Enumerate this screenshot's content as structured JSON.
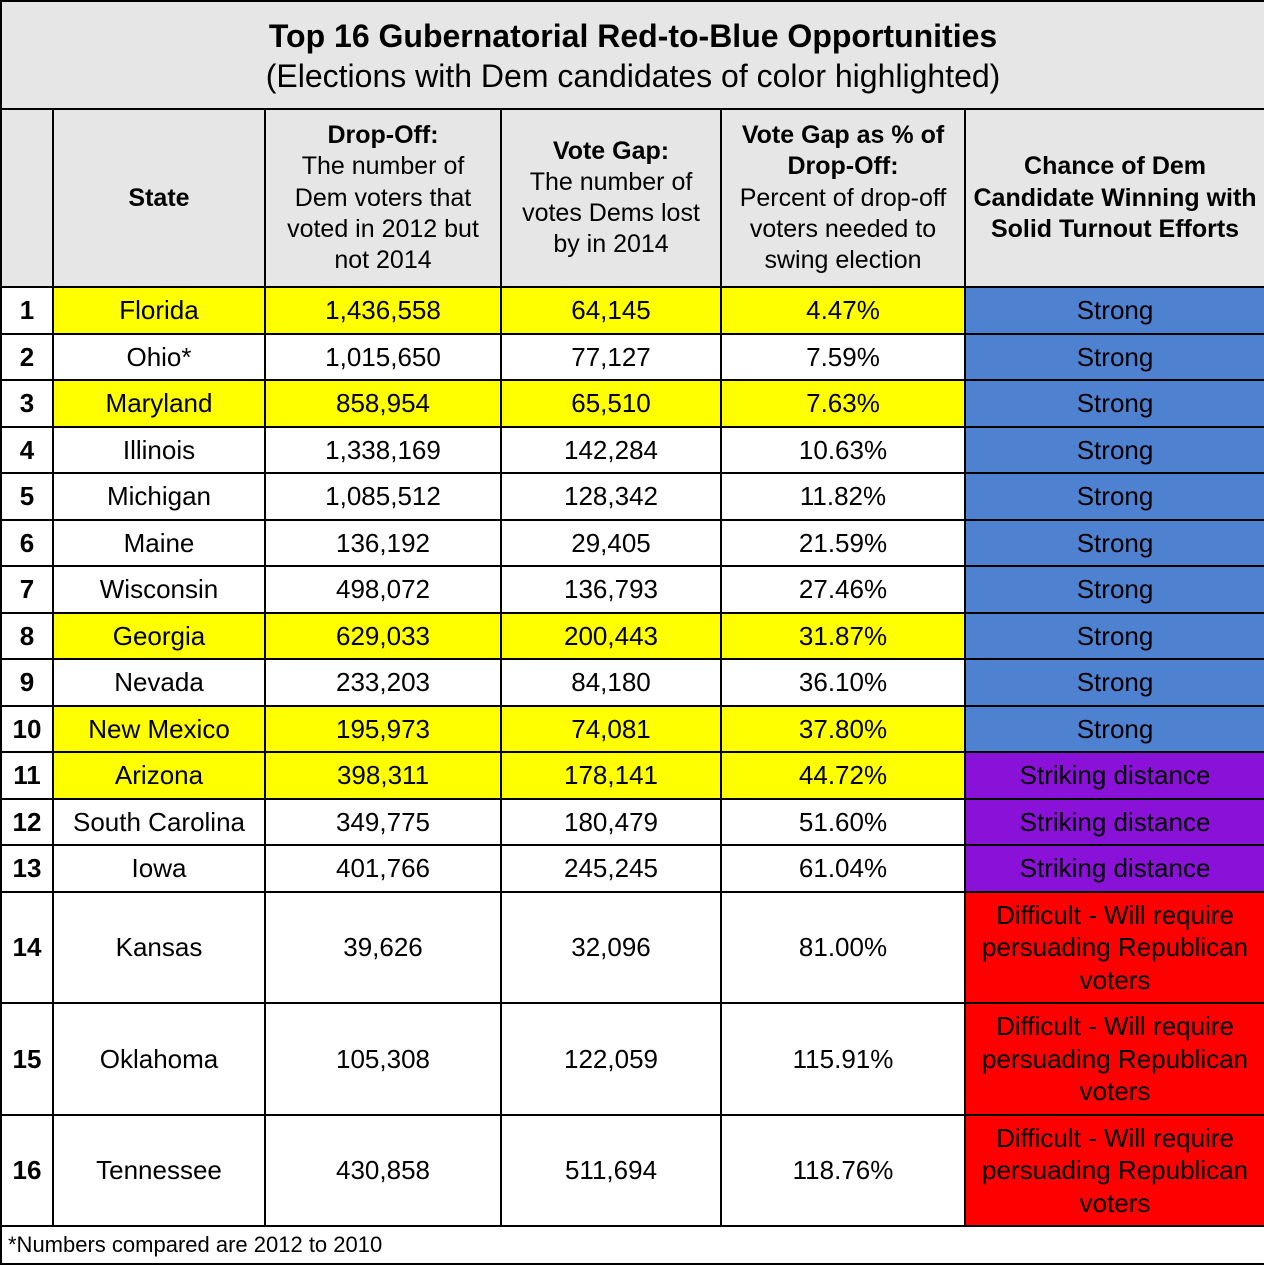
{
  "title": {
    "main": "Top 16 Gubernatorial Red-to-Blue Opportunities",
    "sub": "(Elections with Dem candidates of color highlighted)"
  },
  "columns": {
    "state": "State",
    "dropoff_bold": "Drop-Off:",
    "dropoff_rest": "The number of Dem voters that voted in 2012 but not 2014",
    "gap_bold": "Vote Gap:",
    "gap_rest": "The number of votes Dems lost by in 2014",
    "pct_bold": "Vote Gap as % of Drop-Off:",
    "pct_rest": "Percent of drop-off voters needed to swing election",
    "chance": "Chance of Dem Candidate Winning with Solid Turnout Efforts"
  },
  "chance_colors": {
    "strong": "#4f81d1",
    "striking": "#8a12d8",
    "difficult": "#ff0000"
  },
  "highlight_color": "#ffff00",
  "rows": [
    {
      "n": "1",
      "state": "Florida",
      "dropoff": "1,436,558",
      "gap": "64,145",
      "pct": "4.47%",
      "chance": "Strong",
      "chance_key": "strong",
      "hl": true
    },
    {
      "n": "2",
      "state": "Ohio*",
      "dropoff": "1,015,650",
      "gap": "77,127",
      "pct": "7.59%",
      "chance": "Strong",
      "chance_key": "strong",
      "hl": false
    },
    {
      "n": "3",
      "state": "Maryland",
      "dropoff": "858,954",
      "gap": "65,510",
      "pct": "7.63%",
      "chance": "Strong",
      "chance_key": "strong",
      "hl": true
    },
    {
      "n": "4",
      "state": "Illinois",
      "dropoff": "1,338,169",
      "gap": "142,284",
      "pct": "10.63%",
      "chance": "Strong",
      "chance_key": "strong",
      "hl": false
    },
    {
      "n": "5",
      "state": "Michigan",
      "dropoff": "1,085,512",
      "gap": "128,342",
      "pct": "11.82%",
      "chance": "Strong",
      "chance_key": "strong",
      "hl": false
    },
    {
      "n": "6",
      "state": "Maine",
      "dropoff": "136,192",
      "gap": "29,405",
      "pct": "21.59%",
      "chance": "Strong",
      "chance_key": "strong",
      "hl": false
    },
    {
      "n": "7",
      "state": "Wisconsin",
      "dropoff": "498,072",
      "gap": "136,793",
      "pct": "27.46%",
      "chance": "Strong",
      "chance_key": "strong",
      "hl": false
    },
    {
      "n": "8",
      "state": "Georgia",
      "dropoff": "629,033",
      "gap": "200,443",
      "pct": "31.87%",
      "chance": "Strong",
      "chance_key": "strong",
      "hl": true
    },
    {
      "n": "9",
      "state": "Nevada",
      "dropoff": "233,203",
      "gap": "84,180",
      "pct": "36.10%",
      "chance": "Strong",
      "chance_key": "strong",
      "hl": false
    },
    {
      "n": "10",
      "state": "New Mexico",
      "dropoff": "195,973",
      "gap": "74,081",
      "pct": "37.80%",
      "chance": "Strong",
      "chance_key": "strong",
      "hl": true
    },
    {
      "n": "11",
      "state": "Arizona",
      "dropoff": "398,311",
      "gap": "178,141",
      "pct": "44.72%",
      "chance": "Striking distance",
      "chance_key": "striking",
      "hl": true
    },
    {
      "n": "12",
      "state": "South Carolina",
      "dropoff": "349,775",
      "gap": "180,479",
      "pct": "51.60%",
      "chance": "Striking distance",
      "chance_key": "striking",
      "hl": false
    },
    {
      "n": "13",
      "state": "Iowa",
      "dropoff": "401,766",
      "gap": "245,245",
      "pct": "61.04%",
      "chance": "Striking distance",
      "chance_key": "striking",
      "hl": false
    },
    {
      "n": "14",
      "state": "Kansas",
      "dropoff": "39,626",
      "gap": "32,096",
      "pct": "81.00%",
      "chance": "Difficult - Will require persuading Republican voters",
      "chance_key": "difficult",
      "hl": false
    },
    {
      "n": "15",
      "state": "Oklahoma",
      "dropoff": "105,308",
      "gap": "122,059",
      "pct": "115.91%",
      "chance": "Difficult - Will require persuading Republican voters",
      "chance_key": "difficult",
      "hl": false
    },
    {
      "n": "16",
      "state": "Tennessee",
      "dropoff": "430,858",
      "gap": "511,694",
      "pct": "118.76%",
      "chance": "Difficult - Will require persuading Republican voters",
      "chance_key": "difficult",
      "hl": false
    }
  ],
  "footnote": "*Numbers compared are 2012 to 2010"
}
